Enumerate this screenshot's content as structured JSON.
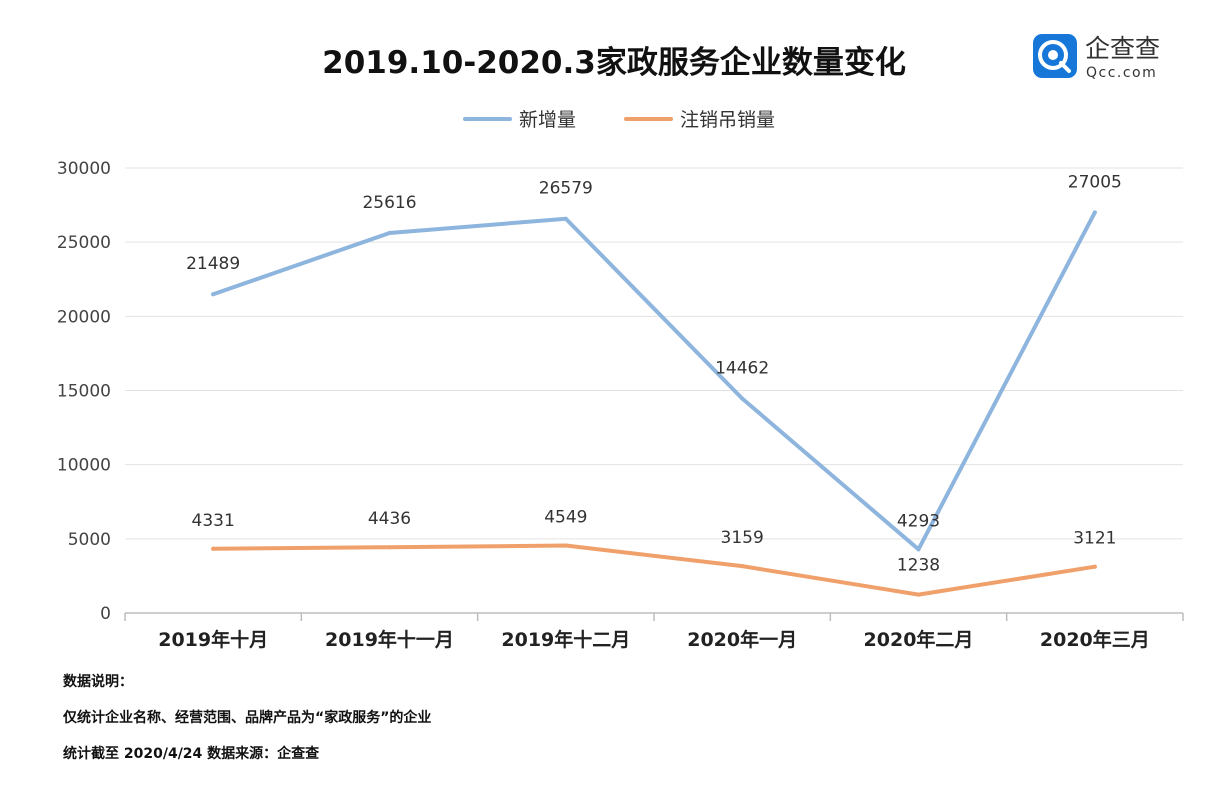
{
  "logo": {
    "icon_name": "qcc-logo-icon",
    "name": "企查查",
    "sub": "Qcc.com",
    "color": "#1677D9"
  },
  "notes": {
    "heading": "数据说明：",
    "line1": "仅统计企业名称、经营范围、品牌产品为“家政服务”的企业",
    "line2": "统计截至 2020/4/24   数据来源：企查查"
  },
  "chart_data": {
    "type": "line",
    "title": "2019.10-2020.3家政服务企业数量变化",
    "xlabel": "",
    "ylabel": "",
    "categories": [
      "2019年十月",
      "2019年十一月",
      "2019年十二月",
      "2020年一月",
      "2020年二月",
      "2020年三月"
    ],
    "ylim": [
      0,
      30000
    ],
    "yticks": [
      0,
      5000,
      10000,
      15000,
      20000,
      25000,
      30000
    ],
    "grid": true,
    "legend_position": "top-center",
    "series": [
      {
        "name": "新增量",
        "color": "#8DB5DD",
        "values": [
          21489,
          25616,
          26579,
          14462,
          4293,
          27005
        ]
      },
      {
        "name": "注销吊销量",
        "color": "#F0A06A",
        "values": [
          4331,
          4436,
          4549,
          3159,
          1238,
          3121
        ]
      }
    ]
  }
}
